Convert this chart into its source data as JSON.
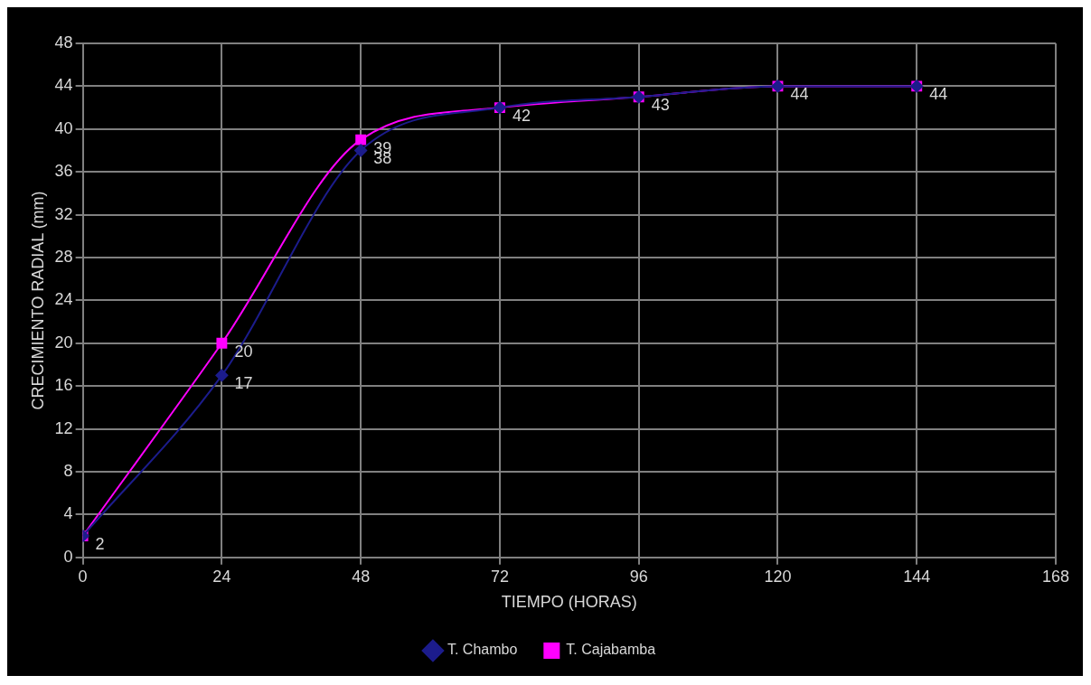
{
  "chart_data": {
    "type": "line",
    "xlabel": "TIEMPO (HORAS)",
    "ylabel": "CRECIMIENTO RADIAL (mm)",
    "x": [
      0,
      24,
      48,
      72,
      96,
      120,
      144
    ],
    "series": [
      {
        "name": "T. Chambo",
        "color": "#1c1c8c",
        "marker": "diamond",
        "values": [
          2,
          17,
          38,
          42,
          43,
          44,
          44
        ],
        "value_labels": [
          null,
          "17",
          "38",
          null,
          null,
          null,
          null
        ]
      },
      {
        "name": "T. Cajabamba",
        "color": "#ff00ff",
        "marker": "square",
        "values": [
          2,
          20,
          39,
          42,
          43,
          44,
          44
        ],
        "value_labels": [
          "2",
          "20",
          "39",
          "42",
          "43",
          "44",
          "44"
        ]
      }
    ],
    "xlim": [
      0,
      168
    ],
    "xticks": [
      0,
      24,
      48,
      72,
      96,
      120,
      144,
      168
    ],
    "ylim": [
      0,
      48
    ],
    "yticks": [
      0,
      4,
      8,
      12,
      16,
      20,
      24,
      28,
      32,
      36,
      40,
      44,
      48
    ],
    "grid": true,
    "legend": "bottom"
  }
}
